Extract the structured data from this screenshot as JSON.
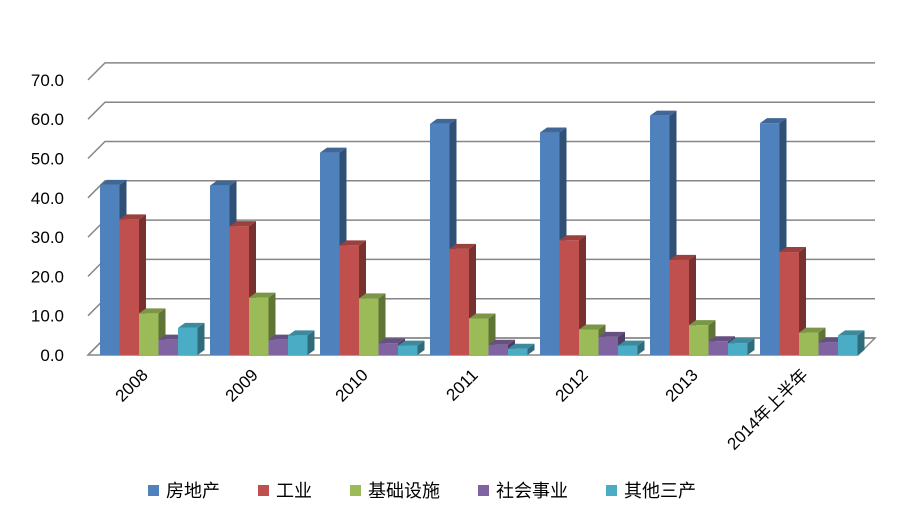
{
  "chart_data": {
    "type": "bar",
    "categories": [
      "2008",
      "2009",
      "2010",
      "2011",
      "2012",
      "2013",
      "2014年上半年"
    ],
    "series": [
      {
        "name": "房地产",
        "color": "#4F81BD",
        "values": [
          43.3,
          43.1,
          51.5,
          58.8,
          56.6,
          60.9,
          59.0
        ]
      },
      {
        "name": "工业",
        "color": "#C0504D",
        "values": [
          34.5,
          32.8,
          27.9,
          27.0,
          29.2,
          24.2,
          26.2
        ]
      },
      {
        "name": "基础设施",
        "color": "#9BBB59",
        "values": [
          10.6,
          14.6,
          14.4,
          9.3,
          6.5,
          7.6,
          5.7
        ]
      },
      {
        "name": "社会事业",
        "color": "#8064A2",
        "values": [
          3.9,
          3.9,
          3.0,
          2.6,
          4.6,
          3.5,
          3.2
        ]
      },
      {
        "name": "其他三产",
        "color": "#4BACC6",
        "values": [
          6.9,
          5.0,
          2.4,
          1.6,
          2.4,
          3.0,
          5.0
        ]
      }
    ],
    "yticks": [
      "0.0",
      "10.0",
      "20.0",
      "30.0",
      "40.0",
      "50.0",
      "60.0",
      "70.0"
    ],
    "ylim": [
      0,
      70
    ],
    "grid": true,
    "legend_position": "bottom"
  }
}
